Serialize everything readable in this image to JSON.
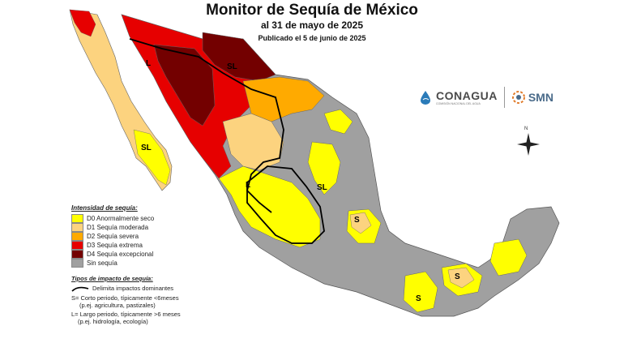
{
  "header": {
    "title": "Monitor de Sequía de México",
    "date_line": "al 31 de mayo de 2025",
    "published": "Publicado el 5 de junio de 2025"
  },
  "legend": {
    "title": "Intensidad de sequía:",
    "items": [
      {
        "code": "D0",
        "label": "D0 Anormalmente seco",
        "color": "#ffff00"
      },
      {
        "code": "D1",
        "label": "D1 Sequía moderada",
        "color": "#fcd37f"
      },
      {
        "code": "D2",
        "label": "D2 Sequía severa",
        "color": "#ffaa00"
      },
      {
        "code": "D3",
        "label": "D3 Sequía extrema",
        "color": "#e60000"
      },
      {
        "code": "D4",
        "label": "D4 Sequía excepcional",
        "color": "#730000"
      },
      {
        "code": "none",
        "label": "Sin sequía",
        "color": "#a0a0a0"
      }
    ]
  },
  "impacts": {
    "title": "Tipos de impacto de sequía:",
    "line_label": "Delimita impactos dominantes",
    "short": "S= Corto periodo, típicamente <6meses",
    "short_ex": "(p.ej. agricultura, pastizales)",
    "long": "L= Largo periodo, típicamente >6 meses",
    "long_ex": "(p.ej. hidrología, ecología)"
  },
  "map_labels": {
    "l_nw": "L",
    "sl_north": "SL",
    "sl_baja": "SL",
    "l_center": "L",
    "sl_east": "SL",
    "s_center": "S",
    "s_south": "S",
    "s_southeast": "S",
    "north": "N"
  },
  "logos": {
    "conagua": "CONAGUA",
    "conagua_sub": "COMISIÓN NACIONAL DEL AGUA",
    "smn": "SMN"
  }
}
